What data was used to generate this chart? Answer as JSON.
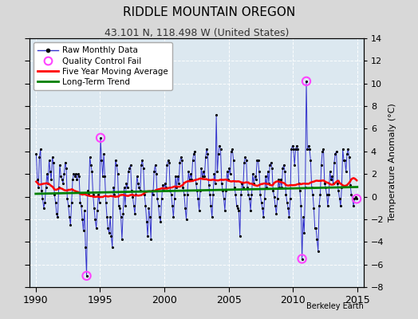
{
  "title": "RIDDLE MOUNTAIN OREGON",
  "subtitle": "43.101 N, 118.498 W (United States)",
  "ylabel": "Temperature Anomaly (°C)",
  "credit": "Berkeley Earth",
  "xlim": [
    1989.5,
    2015.5
  ],
  "ylim": [
    -8,
    14
  ],
  "yticks": [
    -8,
    -6,
    -4,
    -2,
    0,
    2,
    4,
    6,
    8,
    10,
    12,
    14
  ],
  "xticks": [
    1990,
    1995,
    2000,
    2005,
    2010,
    2015
  ],
  "fig_bg_color": "#d8d8d8",
  "plot_bg_color": "#dce8f0",
  "grid_color": "white",
  "raw_color": "#3333cc",
  "dot_color": "black",
  "ma_color": "red",
  "trend_color": "green",
  "qc_fail_color": "#ff44ff",
  "legend_labels": [
    "Raw Monthly Data",
    "Quality Control Fail",
    "Five Year Moving Average",
    "Long-Term Trend"
  ],
  "raw_data": [
    1990.042,
    3.8,
    1990.125,
    1.5,
    1990.208,
    0.8,
    1990.292,
    3.5,
    1990.375,
    4.2,
    1990.458,
    0.5,
    1990.542,
    -0.2,
    1990.625,
    -1.0,
    1990.708,
    -0.5,
    1990.792,
    0.8,
    1990.875,
    2.0,
    1990.958,
    1.2,
    1991.042,
    3.2,
    1991.125,
    2.2,
    1991.208,
    1.5,
    1991.292,
    3.5,
    1991.375,
    3.0,
    1991.458,
    0.2,
    1991.542,
    -0.5,
    1991.625,
    -1.5,
    1991.708,
    -1.8,
    1991.792,
    0.8,
    1991.875,
    2.8,
    1991.958,
    1.8,
    1992.042,
    1.5,
    1992.125,
    1.2,
    1992.208,
    2.0,
    1992.292,
    3.0,
    1992.375,
    2.5,
    1992.458,
    -0.2,
    1992.542,
    -0.8,
    1992.625,
    -1.8,
    1992.708,
    -2.5,
    1992.792,
    -0.5,
    1992.875,
    1.5,
    1992.958,
    2.0,
    1993.042,
    1.8,
    1993.125,
    2.0,
    1993.208,
    1.5,
    1993.292,
    2.0,
    1993.375,
    1.8,
    1993.458,
    -0.5,
    1993.542,
    -0.8,
    1993.625,
    -2.0,
    1993.708,
    -3.0,
    1993.792,
    -1.2,
    1993.875,
    -4.5,
    1993.958,
    -7.0,
    1994.042,
    0.5,
    1994.125,
    0.2,
    1994.208,
    3.5,
    1994.292,
    2.8,
    1994.375,
    2.2,
    1994.458,
    0.2,
    1994.542,
    -1.0,
    1994.625,
    -2.0,
    1994.708,
    -2.8,
    1994.792,
    -1.2,
    1994.875,
    0.2,
    1994.958,
    -0.5,
    1995.042,
    5.2,
    1995.125,
    3.2,
    1995.208,
    1.8,
    1995.292,
    3.8,
    1995.375,
    1.8,
    1995.458,
    -0.5,
    1995.542,
    -1.8,
    1995.625,
    -2.8,
    1995.708,
    -3.2,
    1995.792,
    -1.8,
    1995.875,
    -3.5,
    1995.958,
    -4.5,
    1996.042,
    0.8,
    1996.125,
    0.2,
    1996.208,
    3.2,
    1996.292,
    2.8,
    1996.375,
    2.0,
    1996.458,
    -0.8,
    1996.542,
    -1.0,
    1996.625,
    -1.8,
    1996.708,
    -3.8,
    1996.792,
    -1.5,
    1996.875,
    0.8,
    1996.958,
    -0.8,
    1997.042,
    1.2,
    1997.125,
    0.8,
    1997.208,
    2.2,
    1997.292,
    2.5,
    1997.375,
    2.8,
    1997.458,
    0.5,
    1997.542,
    0.0,
    1997.625,
    -0.8,
    1997.708,
    -1.5,
    1997.792,
    0.2,
    1997.875,
    1.8,
    1997.958,
    1.2,
    1998.042,
    0.8,
    1998.125,
    0.5,
    1998.208,
    2.8,
    1998.292,
    3.2,
    1998.375,
    2.5,
    1998.458,
    0.2,
    1998.542,
    -0.8,
    1998.625,
    -2.2,
    1998.708,
    -3.5,
    1998.792,
    -1.0,
    1998.875,
    -1.8,
    1998.958,
    -3.8,
    1999.042,
    0.5,
    1999.125,
    0.2,
    1999.208,
    2.2,
    1999.292,
    2.8,
    1999.375,
    2.0,
    1999.458,
    -0.2,
    1999.542,
    -0.8,
    1999.625,
    -1.8,
    1999.708,
    -2.2,
    1999.792,
    -0.2,
    1999.875,
    1.0,
    1999.958,
    0.5,
    2000.042,
    1.2,
    2000.125,
    0.8,
    2000.208,
    2.8,
    2000.292,
    3.2,
    2000.375,
    3.0,
    2000.458,
    0.5,
    2000.542,
    0.2,
    2000.625,
    -0.8,
    2000.708,
    -1.8,
    2000.792,
    -0.2,
    2000.875,
    1.8,
    2000.958,
    0.8,
    2001.042,
    1.8,
    2001.125,
    1.2,
    2001.208,
    3.0,
    2001.292,
    3.5,
    2001.375,
    3.2,
    2001.458,
    0.8,
    2001.542,
    0.2,
    2001.625,
    -1.0,
    2001.708,
    -2.0,
    2001.792,
    0.2,
    2001.875,
    2.2,
    2001.958,
    1.5,
    2002.042,
    2.0,
    2002.125,
    1.5,
    2002.208,
    3.2,
    2002.292,
    3.8,
    2002.375,
    4.0,
    2002.458,
    1.2,
    2002.542,
    0.5,
    2002.625,
    -0.2,
    2002.708,
    -1.2,
    2002.792,
    0.5,
    2002.875,
    2.5,
    2002.958,
    1.8,
    2003.042,
    2.2,
    2003.125,
    1.8,
    2003.208,
    3.5,
    2003.292,
    4.2,
    2003.375,
    3.8,
    2003.458,
    1.0,
    2003.542,
    0.2,
    2003.625,
    -0.8,
    2003.708,
    -1.8,
    2003.792,
    0.2,
    2003.875,
    2.0,
    2003.958,
    1.2,
    2004.042,
    7.2,
    2004.125,
    2.2,
    2004.208,
    3.8,
    2004.292,
    4.5,
    2004.375,
    4.2,
    2004.458,
    1.2,
    2004.542,
    0.5,
    2004.625,
    -0.2,
    2004.708,
    -1.2,
    2004.792,
    0.5,
    2004.875,
    2.2,
    2004.958,
    1.5,
    2005.042,
    2.5,
    2005.125,
    2.0,
    2005.208,
    4.0,
    2005.292,
    4.2,
    2005.375,
    3.2,
    2005.458,
    0.8,
    2005.542,
    0.2,
    2005.625,
    -0.8,
    2005.708,
    -1.0,
    2005.792,
    -1.2,
    2005.875,
    -3.5,
    2005.958,
    0.2,
    2006.042,
    1.2,
    2006.125,
    0.8,
    2006.208,
    3.0,
    2006.292,
    3.5,
    2006.375,
    3.2,
    2006.458,
    0.8,
    2006.542,
    0.2,
    2006.625,
    -0.2,
    2006.708,
    -1.2,
    2006.792,
    0.2,
    2006.875,
    2.0,
    2006.958,
    1.2,
    2007.042,
    1.8,
    2007.125,
    1.5,
    2007.208,
    3.2,
    2007.292,
    3.2,
    2007.375,
    2.2,
    2007.458,
    0.2,
    2007.542,
    -0.5,
    2007.625,
    -1.0,
    2007.708,
    -1.8,
    2007.792,
    -0.2,
    2007.875,
    1.8,
    2007.958,
    0.8,
    2008.042,
    2.2,
    2008.125,
    1.2,
    2008.208,
    2.8,
    2008.292,
    3.0,
    2008.375,
    2.5,
    2008.458,
    0.5,
    2008.542,
    0.0,
    2008.625,
    -0.8,
    2008.708,
    -1.5,
    2008.792,
    -0.2,
    2008.875,
    1.5,
    2008.958,
    0.8,
    2009.042,
    1.5,
    2009.125,
    0.8,
    2009.208,
    2.5,
    2009.292,
    2.8,
    2009.375,
    2.2,
    2009.458,
    0.2,
    2009.542,
    -0.5,
    2009.625,
    -1.0,
    2009.708,
    -1.8,
    2009.792,
    -0.2,
    2009.875,
    4.2,
    2009.958,
    4.5,
    2010.042,
    4.2,
    2010.125,
    2.8,
    2010.208,
    4.2,
    2010.292,
    4.5,
    2010.375,
    4.2,
    2010.458,
    1.2,
    2010.542,
    0.5,
    2010.625,
    -0.8,
    2010.708,
    -5.5,
    2010.792,
    -1.8,
    2010.875,
    -3.2,
    2010.958,
    0.8,
    2011.042,
    10.2,
    2011.125,
    4.2,
    2011.208,
    4.5,
    2011.292,
    4.2,
    2011.375,
    3.2,
    2011.458,
    0.8,
    2011.542,
    0.2,
    2011.625,
    -1.0,
    2011.708,
    -2.8,
    2011.792,
    -2.8,
    2011.875,
    -3.8,
    2011.958,
    -4.8,
    2012.042,
    -0.8,
    2012.125,
    0.2,
    2012.208,
    2.8,
    2012.292,
    4.0,
    2012.375,
    4.2,
    2012.458,
    1.2,
    2012.542,
    0.8,
    2012.625,
    0.2,
    2012.708,
    -0.8,
    2012.792,
    0.2,
    2012.875,
    2.2,
    2012.958,
    1.5,
    2013.042,
    1.8,
    2013.125,
    1.2,
    2013.208,
    3.0,
    2013.292,
    3.8,
    2013.375,
    4.0,
    2013.458,
    1.2,
    2013.542,
    0.5,
    2013.625,
    -0.2,
    2013.708,
    -0.8,
    2013.792,
    0.8,
    2013.875,
    4.2,
    2013.958,
    3.2,
    2014.042,
    3.2,
    2014.125,
    2.2,
    2014.208,
    3.8,
    2014.292,
    4.2,
    2014.375,
    3.5,
    2014.458,
    1.0,
    2014.542,
    0.2,
    2014.625,
    -0.2,
    2014.708,
    -0.8,
    2014.792,
    -0.2,
    2014.875,
    0.0,
    2014.958,
    -0.2
  ],
  "qc_fail_points": [
    [
      1993.958,
      -7.0
    ],
    [
      1995.042,
      5.2
    ],
    [
      2010.708,
      -5.5
    ],
    [
      2011.042,
      10.2
    ],
    [
      2014.958,
      -0.2
    ]
  ],
  "trend_x": [
    1990.0,
    2015.0
  ],
  "trend_y": [
    0.25,
    0.85
  ],
  "ma_window": 60
}
